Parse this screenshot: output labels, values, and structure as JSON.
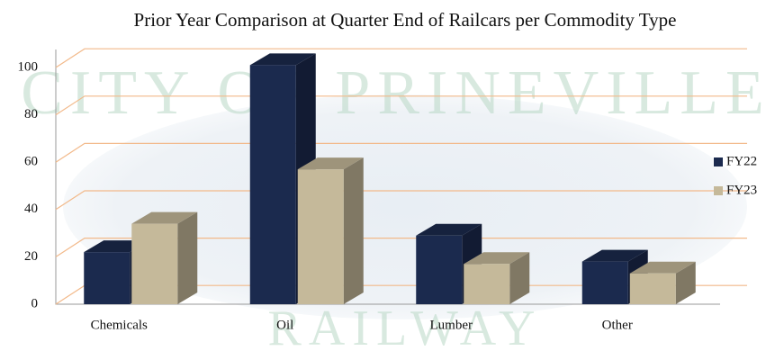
{
  "chart_data": {
    "type": "bar3d",
    "title": "Prior Year Comparison at Quarter End of Railcars per Commodity Type",
    "watermark": [
      "CITY OF PRINEVILLE",
      "RAILWAY"
    ],
    "categories": [
      "Chemicals",
      "Oil",
      "Lumber",
      "Other"
    ],
    "series": [
      {
        "name": "FY22",
        "color": "#1b2a4e",
        "values": [
          22,
          101,
          29,
          18
        ]
      },
      {
        "name": "FY23",
        "color": "#c5b99a",
        "values": [
          34,
          57,
          17,
          13
        ]
      }
    ],
    "ylim": [
      0,
      100
    ],
    "yticks": [
      0,
      20,
      40,
      60,
      80,
      100
    ],
    "grid": true,
    "legend": "right"
  }
}
